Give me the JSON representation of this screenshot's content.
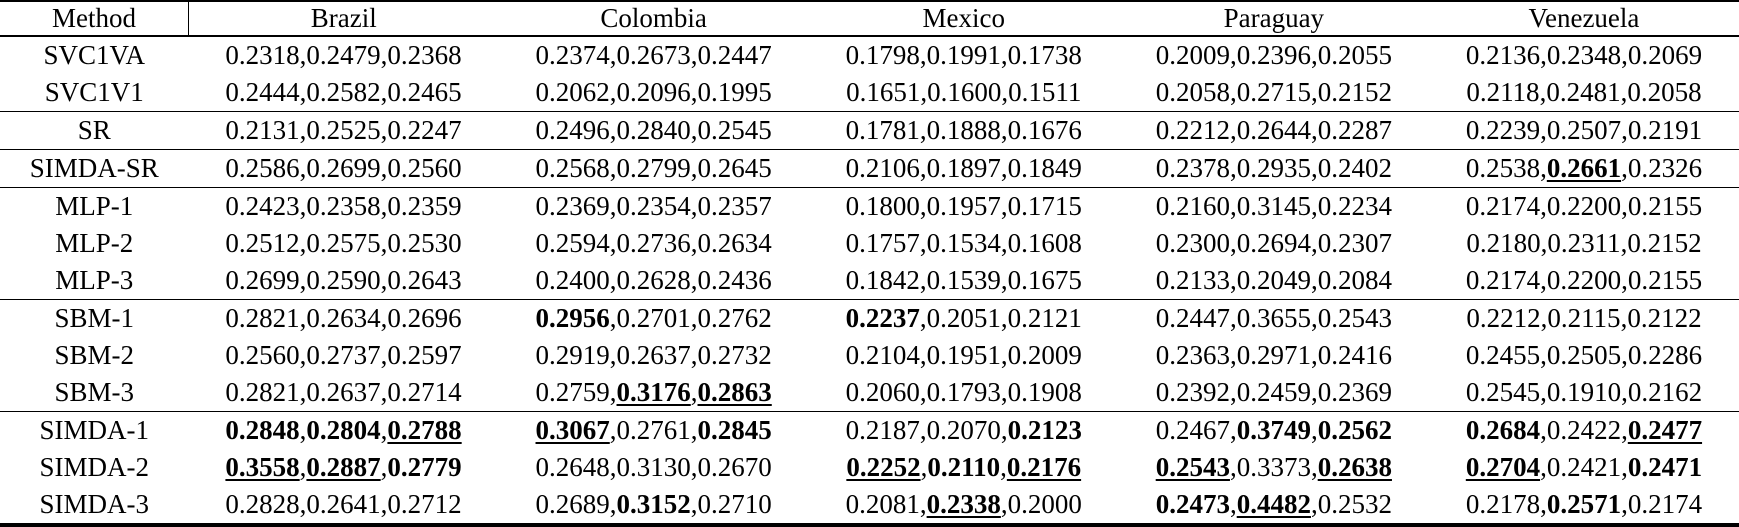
{
  "table": {
    "value_separator": ",",
    "columns": [
      "Method",
      "Brazil",
      "Colombia",
      "Mexico",
      "Paraguay",
      "Venezuela"
    ],
    "rows": [
      {
        "method": "SVC1VA",
        "sep_above": false,
        "cells": [
          [
            {
              "v": "0.2318",
              "s": "n"
            },
            {
              "v": "0.2479",
              "s": "n"
            },
            {
              "v": "0.2368",
              "s": "n"
            }
          ],
          [
            {
              "v": "0.2374",
              "s": "n"
            },
            {
              "v": "0.2673",
              "s": "n"
            },
            {
              "v": "0.2447",
              "s": "n"
            }
          ],
          [
            {
              "v": "0.1798",
              "s": "n"
            },
            {
              "v": "0.1991",
              "s": "n"
            },
            {
              "v": "0.1738",
              "s": "n"
            }
          ],
          [
            {
              "v": "0.2009",
              "s": "n"
            },
            {
              "v": "0.2396",
              "s": "n"
            },
            {
              "v": "0.2055",
              "s": "n"
            }
          ],
          [
            {
              "v": "0.2136",
              "s": "n"
            },
            {
              "v": "0.2348",
              "s": "n"
            },
            {
              "v": "0.2069",
              "s": "n"
            }
          ]
        ]
      },
      {
        "method": "SVC1V1",
        "sep_above": false,
        "cells": [
          [
            {
              "v": "0.2444",
              "s": "n"
            },
            {
              "v": "0.2582",
              "s": "n"
            },
            {
              "v": "0.2465",
              "s": "n"
            }
          ],
          [
            {
              "v": "0.2062",
              "s": "n"
            },
            {
              "v": "0.2096",
              "s": "n"
            },
            {
              "v": "0.1995",
              "s": "n"
            }
          ],
          [
            {
              "v": "0.1651",
              "s": "n"
            },
            {
              "v": "0.1600",
              "s": "n"
            },
            {
              "v": "0.1511",
              "s": "n"
            }
          ],
          [
            {
              "v": "0.2058",
              "s": "n"
            },
            {
              "v": "0.2715",
              "s": "n"
            },
            {
              "v": "0.2152",
              "s": "n"
            }
          ],
          [
            {
              "v": "0.2118",
              "s": "n"
            },
            {
              "v": "0.2481",
              "s": "n"
            },
            {
              "v": "0.2058",
              "s": "n"
            }
          ]
        ]
      },
      {
        "method": "SR",
        "sep_above": true,
        "cells": [
          [
            {
              "v": "0.2131",
              "s": "n"
            },
            {
              "v": "0.2525",
              "s": "n"
            },
            {
              "v": "0.2247",
              "s": "n"
            }
          ],
          [
            {
              "v": "0.2496",
              "s": "n"
            },
            {
              "v": "0.2840",
              "s": "n"
            },
            {
              "v": "0.2545",
              "s": "n"
            }
          ],
          [
            {
              "v": "0.1781",
              "s": "n"
            },
            {
              "v": "0.1888",
              "s": "n"
            },
            {
              "v": "0.1676",
              "s": "n"
            }
          ],
          [
            {
              "v": "0.2212",
              "s": "n"
            },
            {
              "v": "0.2644",
              "s": "n"
            },
            {
              "v": "0.2287",
              "s": "n"
            }
          ],
          [
            {
              "v": "0.2239",
              "s": "n"
            },
            {
              "v": "0.2507",
              "s": "n"
            },
            {
              "v": "0.2191",
              "s": "n"
            }
          ]
        ]
      },
      {
        "method": "SIMDA-SR",
        "sep_above": true,
        "cells": [
          [
            {
              "v": "0.2586",
              "s": "n"
            },
            {
              "v": "0.2699",
              "s": "n"
            },
            {
              "v": "0.2560",
              "s": "n"
            }
          ],
          [
            {
              "v": "0.2568",
              "s": "n"
            },
            {
              "v": "0.2799",
              "s": "n"
            },
            {
              "v": "0.2645",
              "s": "n"
            }
          ],
          [
            {
              "v": "0.2106",
              "s": "n"
            },
            {
              "v": "0.1897",
              "s": "n"
            },
            {
              "v": "0.1849",
              "s": "n"
            }
          ],
          [
            {
              "v": "0.2378",
              "s": "n"
            },
            {
              "v": "0.2935",
              "s": "n"
            },
            {
              "v": "0.2402",
              "s": "n"
            }
          ],
          [
            {
              "v": "0.2538",
              "s": "n"
            },
            {
              "v": "0.2661",
              "s": "bu"
            },
            {
              "v": "0.2326",
              "s": "n"
            }
          ]
        ]
      },
      {
        "method": "MLP-1",
        "sep_above": true,
        "cells": [
          [
            {
              "v": "0.2423",
              "s": "n"
            },
            {
              "v": "0.2358",
              "s": "n"
            },
            {
              "v": "0.2359",
              "s": "n"
            }
          ],
          [
            {
              "v": "0.2369",
              "s": "n"
            },
            {
              "v": "0.2354",
              "s": "n"
            },
            {
              "v": "0.2357",
              "s": "n"
            }
          ],
          [
            {
              "v": "0.1800",
              "s": "n"
            },
            {
              "v": "0.1957",
              "s": "n"
            },
            {
              "v": "0.1715",
              "s": "n"
            }
          ],
          [
            {
              "v": "0.2160",
              "s": "n"
            },
            {
              "v": "0.3145",
              "s": "n"
            },
            {
              "v": "0.2234",
              "s": "n"
            }
          ],
          [
            {
              "v": "0.2174",
              "s": "n"
            },
            {
              "v": "0.2200",
              "s": "n"
            },
            {
              "v": "0.2155",
              "s": "n"
            }
          ]
        ]
      },
      {
        "method": "MLP-2",
        "sep_above": false,
        "cells": [
          [
            {
              "v": "0.2512",
              "s": "n"
            },
            {
              "v": "0.2575",
              "s": "n"
            },
            {
              "v": "0.2530",
              "s": "n"
            }
          ],
          [
            {
              "v": "0.2594",
              "s": "n"
            },
            {
              "v": "0.2736",
              "s": "n"
            },
            {
              "v": "0.2634",
              "s": "n"
            }
          ],
          [
            {
              "v": "0.1757",
              "s": "n"
            },
            {
              "v": "0.1534",
              "s": "n"
            },
            {
              "v": "0.1608",
              "s": "n"
            }
          ],
          [
            {
              "v": "0.2300",
              "s": "n"
            },
            {
              "v": "0.2694",
              "s": "n"
            },
            {
              "v": "0.2307",
              "s": "n"
            }
          ],
          [
            {
              "v": "0.2180",
              "s": "n"
            },
            {
              "v": "0.2311",
              "s": "n"
            },
            {
              "v": "0.2152",
              "s": "n"
            }
          ]
        ]
      },
      {
        "method": "MLP-3",
        "sep_above": false,
        "cells": [
          [
            {
              "v": "0.2699",
              "s": "n"
            },
            {
              "v": "0.2590",
              "s": "n"
            },
            {
              "v": "0.2643",
              "s": "n"
            }
          ],
          [
            {
              "v": "0.2400",
              "s": "n"
            },
            {
              "v": "0.2628",
              "s": "n"
            },
            {
              "v": "0.2436",
              "s": "n"
            }
          ],
          [
            {
              "v": "0.1842",
              "s": "n"
            },
            {
              "v": "0.1539",
              "s": "n"
            },
            {
              "v": "0.1675",
              "s": "n"
            }
          ],
          [
            {
              "v": "0.2133",
              "s": "n"
            },
            {
              "v": "0.2049",
              "s": "n"
            },
            {
              "v": "0.2084",
              "s": "n"
            }
          ],
          [
            {
              "v": "0.2174",
              "s": "n"
            },
            {
              "v": "0.2200",
              "s": "n"
            },
            {
              "v": "0.2155",
              "s": "n"
            }
          ]
        ]
      },
      {
        "method": "SBM-1",
        "sep_above": true,
        "cells": [
          [
            {
              "v": "0.2821",
              "s": "n"
            },
            {
              "v": "0.2634",
              "s": "n"
            },
            {
              "v": "0.2696",
              "s": "n"
            }
          ],
          [
            {
              "v": "0.2956",
              "s": "b"
            },
            {
              "v": "0.2701",
              "s": "n"
            },
            {
              "v": "0.2762",
              "s": "n"
            }
          ],
          [
            {
              "v": "0.2237",
              "s": "b"
            },
            {
              "v": "0.2051",
              "s": "n"
            },
            {
              "v": "0.2121",
              "s": "n"
            }
          ],
          [
            {
              "v": "0.2447",
              "s": "n"
            },
            {
              "v": "0.3655",
              "s": "n"
            },
            {
              "v": "0.2543",
              "s": "n"
            }
          ],
          [
            {
              "v": "0.2212",
              "s": "n"
            },
            {
              "v": "0.2115",
              "s": "n"
            },
            {
              "v": "0.2122",
              "s": "n"
            }
          ]
        ]
      },
      {
        "method": "SBM-2",
        "sep_above": false,
        "cells": [
          [
            {
              "v": "0.2560",
              "s": "n"
            },
            {
              "v": "0.2737",
              "s": "n"
            },
            {
              "v": "0.2597",
              "s": "n"
            }
          ],
          [
            {
              "v": "0.2919",
              "s": "n"
            },
            {
              "v": "0.2637",
              "s": "n"
            },
            {
              "v": "0.2732",
              "s": "n"
            }
          ],
          [
            {
              "v": "0.2104",
              "s": "n"
            },
            {
              "v": "0.1951",
              "s": "n"
            },
            {
              "v": "0.2009",
              "s": "n"
            }
          ],
          [
            {
              "v": "0.2363",
              "s": "n"
            },
            {
              "v": "0.2971",
              "s": "n"
            },
            {
              "v": "0.2416",
              "s": "n"
            }
          ],
          [
            {
              "v": "0.2455",
              "s": "n"
            },
            {
              "v": "0.2505",
              "s": "n"
            },
            {
              "v": "0.2286",
              "s": "n"
            }
          ]
        ]
      },
      {
        "method": "SBM-3",
        "sep_above": false,
        "cells": [
          [
            {
              "v": "0.2821",
              "s": "n"
            },
            {
              "v": "0.2637",
              "s": "n"
            },
            {
              "v": "0.2714",
              "s": "n"
            }
          ],
          [
            {
              "v": "0.2759",
              "s": "n"
            },
            {
              "v": "0.3176",
              "s": "bu"
            },
            {
              "v": "0.2863",
              "s": "bu"
            }
          ],
          [
            {
              "v": "0.2060",
              "s": "n"
            },
            {
              "v": "0.1793",
              "s": "n"
            },
            {
              "v": "0.1908",
              "s": "n"
            }
          ],
          [
            {
              "v": "0.2392",
              "s": "n"
            },
            {
              "v": "0.2459",
              "s": "n"
            },
            {
              "v": "0.2369",
              "s": "n"
            }
          ],
          [
            {
              "v": "0.2545",
              "s": "n"
            },
            {
              "v": "0.1910",
              "s": "n"
            },
            {
              "v": "0.2162",
              "s": "n"
            }
          ]
        ]
      },
      {
        "method": "SIMDA-1",
        "sep_above": true,
        "cells": [
          [
            {
              "v": "0.2848",
              "s": "b"
            },
            {
              "v": "0.2804",
              "s": "b"
            },
            {
              "v": "0.2788",
              "s": "bu"
            }
          ],
          [
            {
              "v": "0.3067",
              "s": "bu"
            },
            {
              "v": "0.2761",
              "s": "n"
            },
            {
              "v": "0.2845",
              "s": "b"
            }
          ],
          [
            {
              "v": "0.2187",
              "s": "n"
            },
            {
              "v": "0.2070",
              "s": "n"
            },
            {
              "v": "0.2123",
              "s": "b"
            }
          ],
          [
            {
              "v": "0.2467",
              "s": "n"
            },
            {
              "v": "0.3749",
              "s": "b"
            },
            {
              "v": "0.2562",
              "s": "b"
            }
          ],
          [
            {
              "v": "0.2684",
              "s": "b"
            },
            {
              "v": "0.2422",
              "s": "n"
            },
            {
              "v": "0.2477",
              "s": "bu"
            }
          ]
        ]
      },
      {
        "method": "SIMDA-2",
        "sep_above": false,
        "cells": [
          [
            {
              "v": "0.3558",
              "s": "bu"
            },
            {
              "v": "0.2887",
              "s": "bu"
            },
            {
              "v": "0.2779",
              "s": "b"
            }
          ],
          [
            {
              "v": "0.2648",
              "s": "n"
            },
            {
              "v": "0.3130",
              "s": "n"
            },
            {
              "v": "0.2670",
              "s": "n"
            }
          ],
          [
            {
              "v": "0.2252",
              "s": "bu"
            },
            {
              "v": "0.2110",
              "s": "b"
            },
            {
              "v": "0.2176",
              "s": "bu"
            }
          ],
          [
            {
              "v": "0.2543",
              "s": "bu"
            },
            {
              "v": "0.3373",
              "s": "n"
            },
            {
              "v": "0.2638",
              "s": "bu"
            }
          ],
          [
            {
              "v": "0.2704",
              "s": "bu"
            },
            {
              "v": "0.2421",
              "s": "n"
            },
            {
              "v": "0.2471",
              "s": "b"
            }
          ]
        ]
      },
      {
        "method": "SIMDA-3",
        "sep_above": false,
        "cells": [
          [
            {
              "v": "0.2828",
              "s": "n"
            },
            {
              "v": "0.2641",
              "s": "n"
            },
            {
              "v": "0.2712",
              "s": "n"
            }
          ],
          [
            {
              "v": "0.2689",
              "s": "n"
            },
            {
              "v": "0.3152",
              "s": "b"
            },
            {
              "v": "0.2710",
              "s": "n"
            }
          ],
          [
            {
              "v": "0.2081",
              "s": "n"
            },
            {
              "v": "0.2338",
              "s": "bu"
            },
            {
              "v": "0.2000",
              "s": "n"
            }
          ],
          [
            {
              "v": "0.2473",
              "s": "b"
            },
            {
              "v": "0.4482",
              "s": "bu"
            },
            {
              "v": "0.2532",
              "s": "n"
            }
          ],
          [
            {
              "v": "0.2178",
              "s": "n"
            },
            {
              "v": "0.2571",
              "s": "b"
            },
            {
              "v": "0.2174",
              "s": "n"
            }
          ]
        ]
      }
    ]
  }
}
